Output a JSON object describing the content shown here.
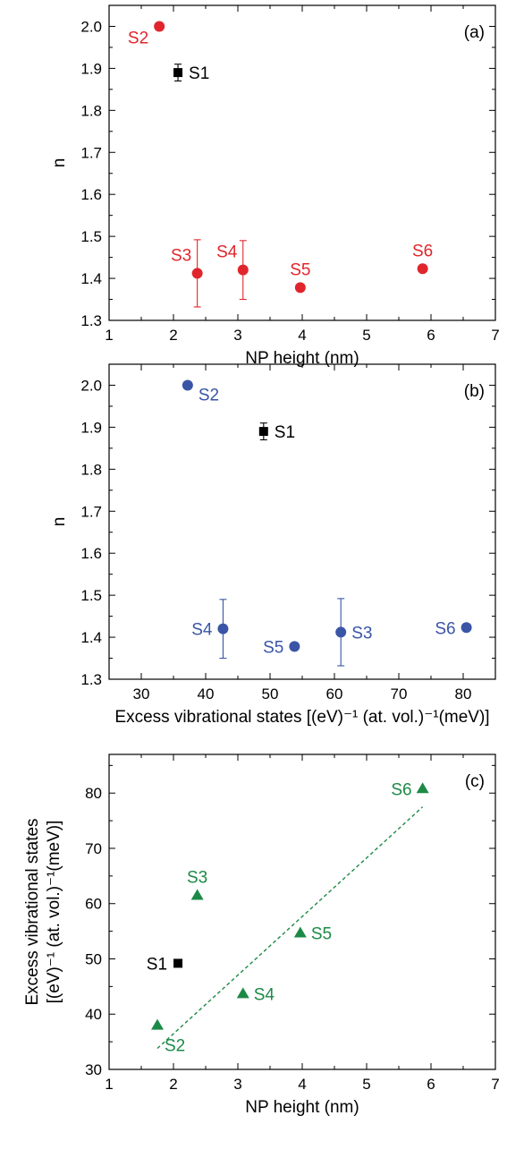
{
  "chart_data": [
    {
      "type": "scatter",
      "panel_label": "(a)",
      "xlabel": "NP height (nm)",
      "ylabel": "n",
      "xlim": [
        1,
        7
      ],
      "ylim": [
        1.3,
        2.05
      ],
      "xticks": [
        "1",
        "2",
        "3",
        "4",
        "5",
        "6",
        "7"
      ],
      "yticks": [
        "1.3",
        "1.4",
        "1.5",
        "1.6",
        "1.7",
        "1.8",
        "1.9",
        "2.0"
      ],
      "series": [
        {
          "color": "#000000",
          "marker": "square",
          "points": [
            {
              "label": "S1",
              "x": 2.07,
              "y": 1.89,
              "err": 0.02,
              "label_side": "right"
            }
          ]
        },
        {
          "color": "#e0262c",
          "marker": "circle",
          "points": [
            {
              "label": "S2",
              "x": 1.78,
              "y": 2.0,
              "err": 0,
              "label_side": "left-below"
            },
            {
              "label": "S3",
              "x": 2.37,
              "y": 1.412,
              "err": 0.08,
              "label_side": "upper-left"
            },
            {
              "label": "S4",
              "x": 3.08,
              "y": 1.42,
              "err": 0.07,
              "label_side": "upper-left"
            },
            {
              "label": "S5",
              "x": 3.97,
              "y": 1.378,
              "err": 0,
              "label_side": "above"
            },
            {
              "label": "S6",
              "x": 5.87,
              "y": 1.423,
              "err": 0,
              "label_side": "above"
            }
          ]
        }
      ]
    },
    {
      "type": "scatter",
      "panel_label": "(b)",
      "xlabel": "Excess vibrational states [(eV)⁻¹ (at. vol.)⁻¹(meV)]",
      "ylabel": "n",
      "xlim": [
        25,
        85
      ],
      "ylim": [
        1.3,
        2.05
      ],
      "xticks": [
        "30",
        "40",
        "50",
        "60",
        "70",
        "80"
      ],
      "yticks": [
        "1.3",
        "1.4",
        "1.5",
        "1.6",
        "1.7",
        "1.8",
        "1.9",
        "2.0"
      ],
      "series": [
        {
          "color": "#000000",
          "marker": "square",
          "points": [
            {
              "label": "S1",
              "x": 49.0,
              "y": 1.89,
              "err": 0.02,
              "label_side": "right"
            }
          ]
        },
        {
          "color": "#3a55a6",
          "marker": "circle",
          "points": [
            {
              "label": "S2",
              "x": 37.2,
              "y": 2.0,
              "err": 0.005,
              "label_side": "right-below"
            },
            {
              "label": "S4",
              "x": 42.7,
              "y": 1.42,
              "err": 0.07,
              "label_side": "left"
            },
            {
              "label": "S5",
              "x": 53.8,
              "y": 1.378,
              "err": 0,
              "label_side": "left"
            },
            {
              "label": "S3",
              "x": 61.0,
              "y": 1.412,
              "err": 0.08,
              "label_side": "right"
            },
            {
              "label": "S6",
              "x": 80.5,
              "y": 1.423,
              "err": 0,
              "label_side": "left"
            }
          ]
        }
      ]
    },
    {
      "type": "scatter",
      "panel_label": "(c)",
      "xlabel": "NP height (nm)",
      "ylabel_line1": "Excess vibrational states",
      "ylabel_line2": "[(eV)⁻¹ (at. vol.)⁻¹(meV)]",
      "xlim": [
        1,
        7
      ],
      "ylim": [
        30,
        87
      ],
      "xticks": [
        "1",
        "2",
        "3",
        "4",
        "5",
        "6",
        "7"
      ],
      "yticks": [
        "30",
        "40",
        "50",
        "60",
        "70",
        "80"
      ],
      "series": [
        {
          "color": "#000000",
          "marker": "square",
          "points": [
            {
              "label": "S1",
              "x": 2.07,
              "y": 49.2,
              "err": 0.5,
              "label_side": "left"
            }
          ]
        },
        {
          "color": "#1c8a47",
          "marker": "triangle",
          "points": [
            {
              "label": "S2",
              "x": 1.75,
              "y": 38.0,
              "err": 0,
              "label_side": "below-right"
            },
            {
              "label": "S3",
              "x": 2.37,
              "y": 61.5,
              "err": 0,
              "label_side": "above"
            },
            {
              "label": "S4",
              "x": 3.08,
              "y": 43.7,
              "err": 0,
              "label_side": "right"
            },
            {
              "label": "S5",
              "x": 3.97,
              "y": 54.7,
              "err": 0,
              "label_side": "right"
            },
            {
              "label": "S6",
              "x": 5.87,
              "y": 80.8,
              "err": 0,
              "label_side": "left"
            }
          ]
        }
      ],
      "fit_line": {
        "color": "#1c8a47",
        "style": "dashed",
        "x": [
          1.75,
          5.87
        ],
        "y": [
          33.8,
          77.5
        ]
      }
    }
  ]
}
